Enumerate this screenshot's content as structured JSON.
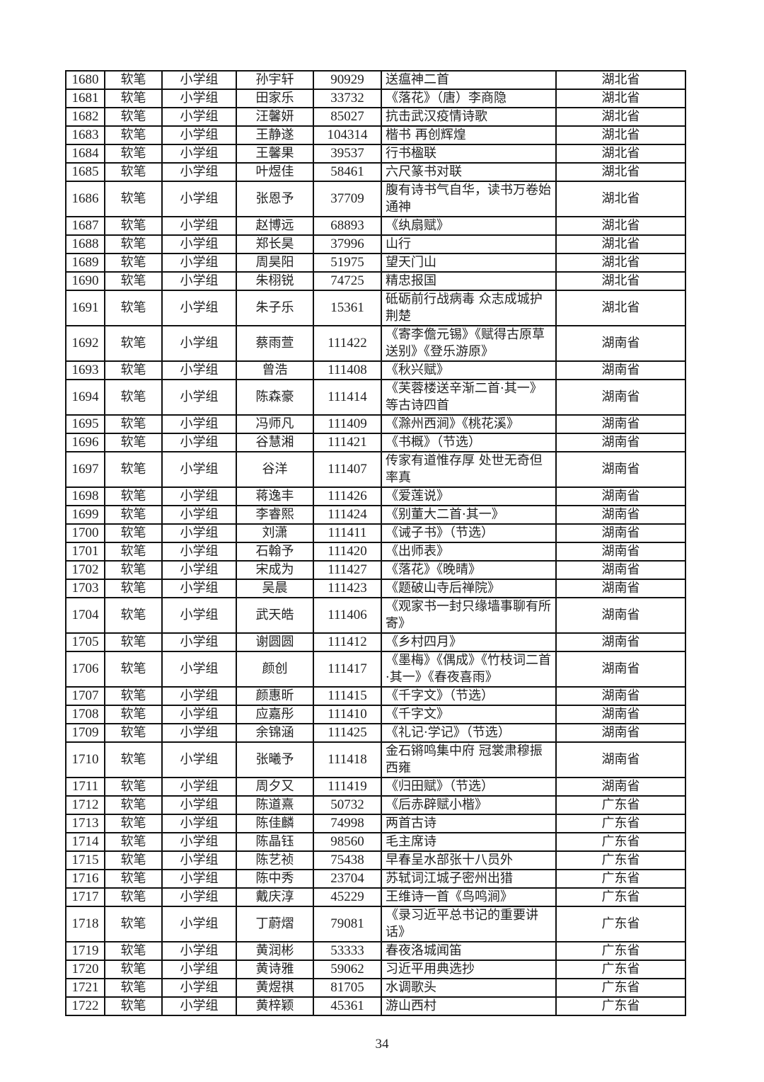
{
  "columns_note": "",
  "rows": [
    [
      "1680",
      "软笔",
      "小学组",
      "孙宇轩",
      "90929",
      "送瘟神二首",
      "湖北省"
    ],
    [
      "1681",
      "软笔",
      "小学组",
      "田家乐",
      "33732",
      "《落花》（唐）李商隐",
      "湖北省"
    ],
    [
      "1682",
      "软笔",
      "小学组",
      "汪馨妍",
      "85027",
      "抗击武汉疫情诗歌",
      "湖北省"
    ],
    [
      "1683",
      "软笔",
      "小学组",
      "王静遂",
      "104314",
      "楷书 再创辉煌",
      "湖北省"
    ],
    [
      "1684",
      "软笔",
      "小学组",
      "王馨果",
      "39537",
      "行书楹联",
      "湖北省"
    ],
    [
      "1685",
      "软笔",
      "小学组",
      "叶煜佳",
      "58461",
      "六尺篆书对联",
      "湖北省"
    ],
    [
      "1686",
      "软笔",
      "小学组",
      "张恩予",
      "37709",
      "腹有诗书气自华，读书万卷始通神",
      "湖北省"
    ],
    [
      "1687",
      "软笔",
      "小学组",
      "赵博远",
      "68893",
      "《纨扇赋》",
      "湖北省"
    ],
    [
      "1688",
      "软笔",
      "小学组",
      "郑长昊",
      "37996",
      "山行",
      "湖北省"
    ],
    [
      "1689",
      "软笔",
      "小学组",
      "周昊阳",
      "51975",
      "望天门山",
      "湖北省"
    ],
    [
      "1690",
      "软笔",
      "小学组",
      "朱栩锐",
      "74725",
      "精忠报国",
      "湖北省"
    ],
    [
      "1691",
      "软笔",
      "小学组",
      "朱子乐",
      "15361",
      "砥砺前行战病毒 众志成城护荆楚",
      "湖北省"
    ],
    [
      "1692",
      "软笔",
      "小学组",
      "蔡雨萱",
      "111422",
      "《寄李儋元锡》《赋得古原草送别》《登乐游原》",
      "湖南省"
    ],
    [
      "1693",
      "软笔",
      "小学组",
      "曾浩",
      "111408",
      "《秋兴赋》",
      "湖南省"
    ],
    [
      "1694",
      "软笔",
      "小学组",
      "陈森豪",
      "111414",
      "《芙蓉楼送辛渐二首·其一》等古诗四首",
      "湖南省"
    ],
    [
      "1695",
      "软笔",
      "小学组",
      "冯师凡",
      "111409",
      "《滁州西涧》《桃花溪》",
      "湖南省"
    ],
    [
      "1696",
      "软笔",
      "小学组",
      "谷慧湘",
      "111421",
      "《书概》（节选）",
      "湖南省"
    ],
    [
      "1697",
      "软笔",
      "小学组",
      "谷洋",
      "111407",
      "传家有道惟存厚 处世无奇但率真",
      "湖南省"
    ],
    [
      "1698",
      "软笔",
      "小学组",
      "蒋逸丰",
      "111426",
      "《爱莲说》",
      "湖南省"
    ],
    [
      "1699",
      "软笔",
      "小学组",
      "李睿熙",
      "111424",
      "《别董大二首·其一》",
      "湖南省"
    ],
    [
      "1700",
      "软笔",
      "小学组",
      "刘潇",
      "111411",
      "《诫子书》（节选）",
      "湖南省"
    ],
    [
      "1701",
      "软笔",
      "小学组",
      "石翰予",
      "111420",
      "《出师表》",
      "湖南省"
    ],
    [
      "1702",
      "软笔",
      "小学组",
      "宋成为",
      "111427",
      "《落花》《晚晴》",
      "湖南省"
    ],
    [
      "1703",
      "软笔",
      "小学组",
      "吴晨",
      "111423",
      "《题破山寺后禅院》",
      "湖南省"
    ],
    [
      "1704",
      "软笔",
      "小学组",
      "武天皓",
      "111406",
      "《观家书一封只缘墙事聊有所寄》",
      "湖南省"
    ],
    [
      "1705",
      "软笔",
      "小学组",
      "谢圆圆",
      "111412",
      "《乡村四月》",
      "湖南省"
    ],
    [
      "1706",
      "软笔",
      "小学组",
      "颜创",
      "111417",
      "《墨梅》《偶成》《竹枝词二首·其一》《春夜喜雨》",
      "湖南省"
    ],
    [
      "1707",
      "软笔",
      "小学组",
      "颜惠昕",
      "111415",
      "《千字文》（节选）",
      "湖南省"
    ],
    [
      "1708",
      "软笔",
      "小学组",
      "应嘉彤",
      "111410",
      "《千字文》",
      "湖南省"
    ],
    [
      "1709",
      "软笔",
      "小学组",
      "余锦涵",
      "111425",
      "《礼记·学记》（节选）",
      "湖南省"
    ],
    [
      "1710",
      "软笔",
      "小学组",
      "张曦予",
      "111418",
      "金石锵鸣集中府 冠裳肃穆振西雍",
      "湖南省"
    ],
    [
      "1711",
      "软笔",
      "小学组",
      "周夕又",
      "111419",
      "《归田赋》（节选）",
      "湖南省"
    ],
    [
      "1712",
      "软笔",
      "小学组",
      "陈道熹",
      "50732",
      "《后赤辟赋小楷》",
      "广东省"
    ],
    [
      "1713",
      "软笔",
      "小学组",
      "陈佳麟",
      "74998",
      "两首古诗",
      "广东省"
    ],
    [
      "1714",
      "软笔",
      "小学组",
      "陈晶钰",
      "98560",
      "毛主席诗",
      "广东省"
    ],
    [
      "1715",
      "软笔",
      "小学组",
      "陈艺祯",
      "75438",
      "早春呈水部张十八员外",
      "广东省"
    ],
    [
      "1716",
      "软笔",
      "小学组",
      "陈中秀",
      "23704",
      "苏轼词江城子密州出猎",
      "广东省"
    ],
    [
      "1717",
      "软笔",
      "小学组",
      "戴庆淳",
      "45229",
      "王维诗一首《鸟鸣涧》",
      "广东省"
    ],
    [
      "1718",
      "软笔",
      "小学组",
      "丁蔚熠",
      "79081",
      "《录习近平总书记的重要讲话》",
      "广东省"
    ],
    [
      "1719",
      "软笔",
      "小学组",
      "黄润彬",
      "53333",
      "春夜洛城闻笛",
      "广东省"
    ],
    [
      "1720",
      "软笔",
      "小学组",
      "黄诗雅",
      "59062",
      "习近平用典选抄",
      "广东省"
    ],
    [
      "1721",
      "软笔",
      "小学组",
      "黄煜祺",
      "81705",
      "水调歌头",
      "广东省"
    ],
    [
      "1722",
      "软笔",
      "小学组",
      "黄梓颖",
      "45361",
      "游山西村",
      "广东省"
    ]
  ],
  "page_number": "34"
}
